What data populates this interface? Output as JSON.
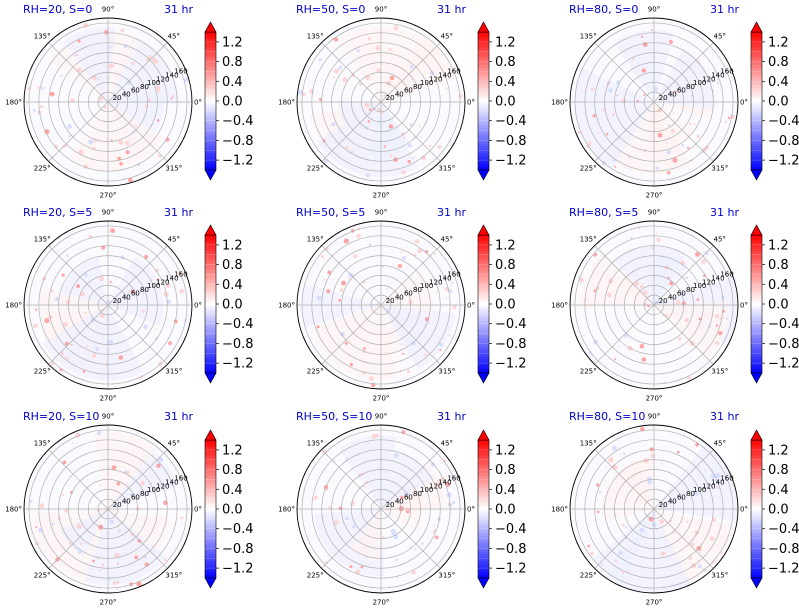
{
  "colors": {
    "title_color": "#0000cc",
    "grid_color": "#b0b0b0",
    "cmap_low": "#0000ff",
    "cmap_mid": "#ffffff",
    "cmap_high": "#ff0000"
  },
  "angle_ticks": [
    "0°",
    "45°",
    "90°",
    "135°",
    "180°",
    "225°",
    "270°",
    "315°"
  ],
  "radial_ticks": [
    "20",
    "40",
    "60",
    "80",
    "100",
    "120",
    "140",
    "160"
  ],
  "colorbar": {
    "ticks": [
      "1.2",
      "0.8",
      "0.4",
      "0.0",
      "−0.4",
      "−0.8",
      "−1.2"
    ],
    "range": [
      -1.4,
      1.4
    ],
    "extend": "both"
  },
  "panels": [
    {
      "title": "RH=20, S=0",
      "time": "31 hr"
    },
    {
      "title": "RH=50, S=0",
      "time": "31 hr"
    },
    {
      "title": "RH=80, S=0",
      "time": "31 hr"
    },
    {
      "title": "RH=20, S=5",
      "time": "31 hr"
    },
    {
      "title": "RH=50, S=5",
      "time": "31 hr"
    },
    {
      "title": "RH=80, S=5",
      "time": "31 hr"
    },
    {
      "title": "RH=20, S=10",
      "time": "31 hr"
    },
    {
      "title": "RH=50, S=10",
      "time": "31 hr"
    },
    {
      "title": "RH=80, S=10",
      "time": "31 hr"
    }
  ],
  "chart_data": {
    "type": "heatmap",
    "projection": "polar",
    "grid": true,
    "rmax": 170,
    "theta_tick_degrees": [
      0,
      45,
      90,
      135,
      180,
      225,
      270,
      315
    ],
    "r_ticks": [
      20,
      40,
      60,
      80,
      100,
      120,
      140,
      160
    ],
    "value_range": [
      -1.4,
      1.4
    ],
    "colormap": "bwr",
    "layout": "3x3 grid"
  }
}
